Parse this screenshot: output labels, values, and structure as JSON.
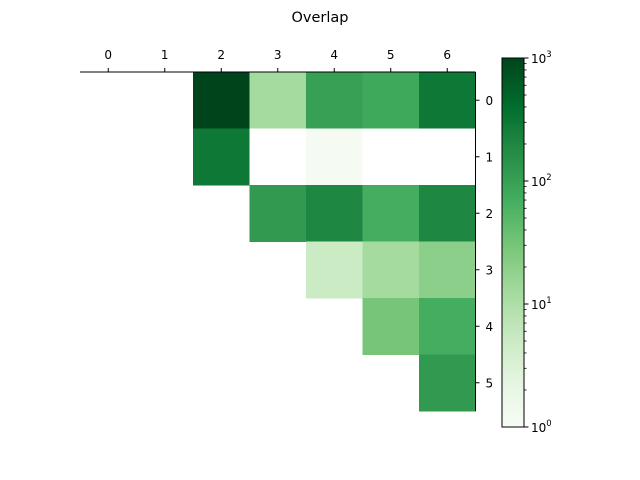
{
  "chart_data": {
    "type": "heatmap",
    "title": "Overlap",
    "x_ticks": [
      "0",
      "1",
      "2",
      "3",
      "4",
      "5",
      "6"
    ],
    "y_ticks": [
      "0",
      "1",
      "2",
      "3",
      "4",
      "5"
    ],
    "x_axis_position": "top",
    "y_axis_position": "right",
    "color_scale": "log",
    "colormap": "Greens",
    "colorbar": {
      "range": [
        1,
        1000
      ],
      "major_ticks": [
        {
          "value": 1,
          "base": "10",
          "exp": "0"
        },
        {
          "value": 10,
          "base": "10",
          "exp": "1"
        },
        {
          "value": 100,
          "base": "10",
          "exp": "2"
        },
        {
          "value": 1000,
          "base": "10",
          "exp": "3"
        }
      ]
    },
    "cells": [
      {
        "row": 0,
        "col": 2,
        "value": 1000
      },
      {
        "row": 0,
        "col": 3,
        "value": 12
      },
      {
        "row": 0,
        "col": 4,
        "value": 100
      },
      {
        "row": 0,
        "col": 5,
        "value": 80
      },
      {
        "row": 0,
        "col": 6,
        "value": 300
      },
      {
        "row": 1,
        "col": 2,
        "value": 300
      },
      {
        "row": 1,
        "col": 3,
        "value": 0
      },
      {
        "row": 1,
        "col": 4,
        "value": 1.1
      },
      {
        "row": 1,
        "col": 5,
        "value": 0
      },
      {
        "row": 1,
        "col": 6,
        "value": 0
      },
      {
        "row": 2,
        "col": 3,
        "value": 120
      },
      {
        "row": 2,
        "col": 4,
        "value": 200
      },
      {
        "row": 2,
        "col": 5,
        "value": 70
      },
      {
        "row": 2,
        "col": 6,
        "value": 200
      },
      {
        "row": 3,
        "col": 4,
        "value": 5
      },
      {
        "row": 3,
        "col": 5,
        "value": 12
      },
      {
        "row": 3,
        "col": 6,
        "value": 20
      },
      {
        "row": 4,
        "col": 5,
        "value": 30
      },
      {
        "row": 4,
        "col": 6,
        "value": 70
      },
      {
        "row": 5,
        "col": 6,
        "value": 120
      }
    ]
  }
}
